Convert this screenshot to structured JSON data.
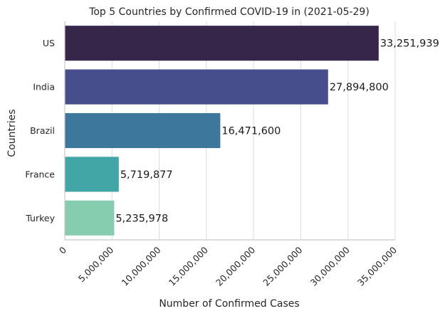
{
  "chart_data": {
    "type": "bar",
    "orientation": "horizontal",
    "title": "Top 5 Countries by Confirmed COVID-19 in (2021-05-29)",
    "xlabel": "Number of Confirmed Cases",
    "ylabel": "Countries",
    "categories": [
      "US",
      "India",
      "Brazil",
      "France",
      "Turkey"
    ],
    "values": [
      33251939,
      27894800,
      16471600,
      5719877,
      5235978
    ],
    "value_labels": [
      "33,251,939",
      "27,894,800",
      "16,471,600",
      "5,719,877",
      "5,235,978"
    ],
    "colors": [
      "#35264a",
      "#464f8c",
      "#3d779c",
      "#43a6a6",
      "#86cdb0"
    ],
    "xlim": [
      0,
      35000000
    ],
    "xticks": [
      0,
      5000000,
      10000000,
      15000000,
      20000000,
      25000000,
      30000000,
      35000000
    ],
    "xtick_labels": [
      "0",
      "5,000,000",
      "10,000,000",
      "15,000,000",
      "20,000,000",
      "25,000,000",
      "30,000,000",
      "35,000,000"
    ],
    "grid": true,
    "legend": "none"
  }
}
